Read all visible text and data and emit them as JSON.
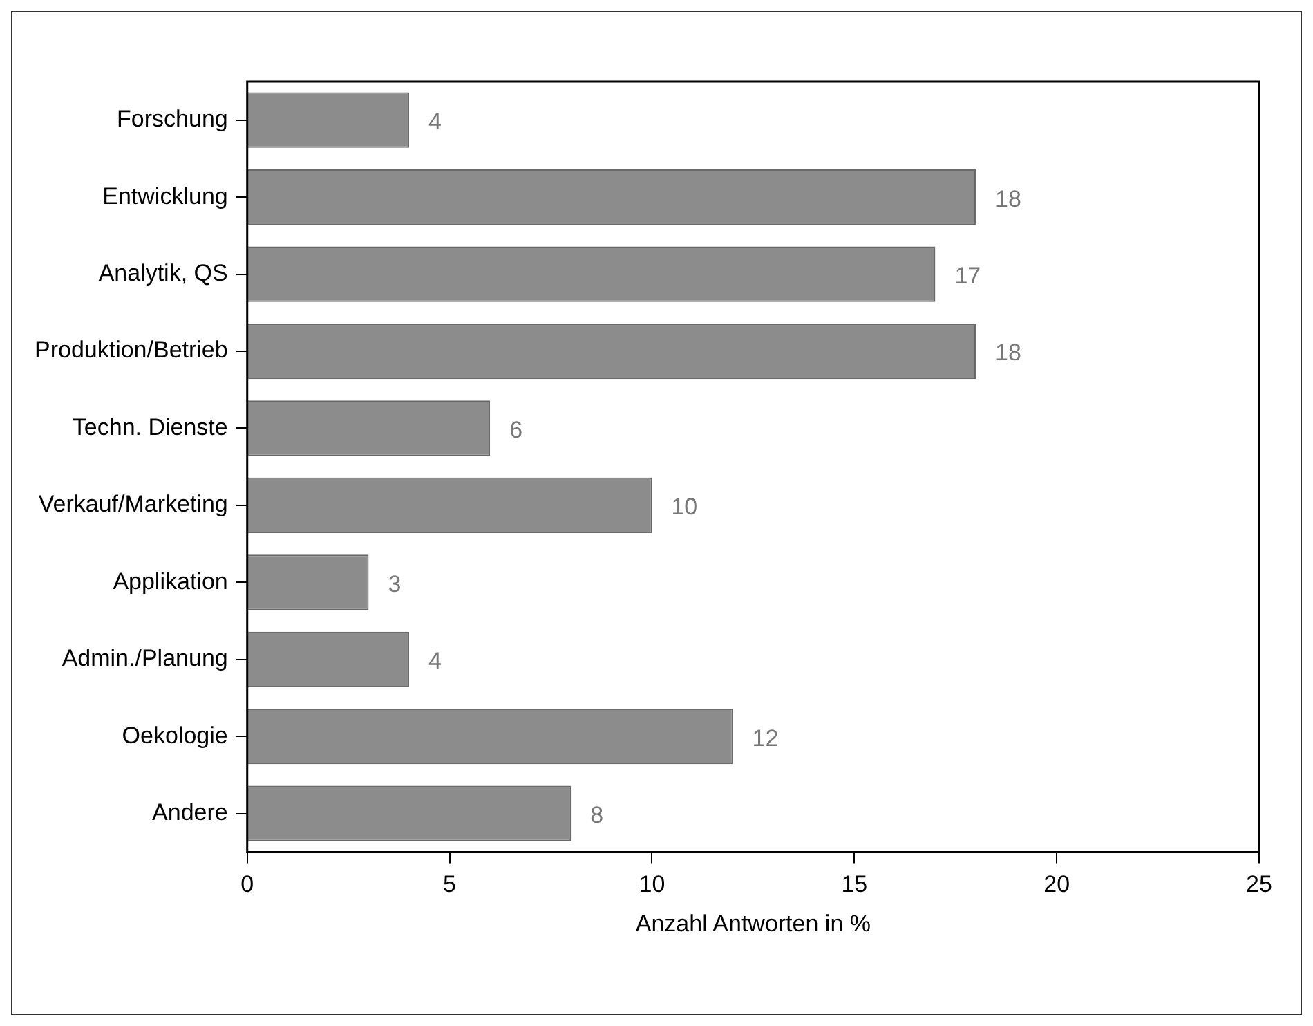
{
  "chart_data": {
    "type": "bar",
    "orientation": "horizontal",
    "xlabel": "Anzahl Antworten in %",
    "categories": [
      "Forschung",
      "Entwicklung",
      "Analytik, QS",
      "Produktion/Betrieb",
      "Techn. Dienste",
      "Verkauf/Marketing",
      "Applikation",
      "Admin./Planung",
      "Oekologie",
      "Andere"
    ],
    "values": [
      4,
      18,
      17,
      18,
      6,
      10,
      3,
      4,
      12,
      8
    ],
    "color": "#8c8c8c",
    "xlim": [
      0,
      25
    ],
    "xticks": [
      0,
      5,
      10,
      15,
      20,
      25
    ],
    "grid": false,
    "legend": false,
    "data_labels": true
  }
}
